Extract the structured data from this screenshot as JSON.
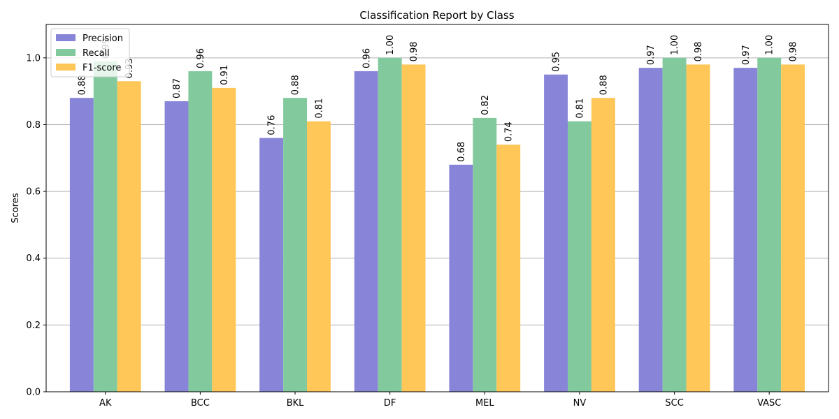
{
  "chart_data": {
    "type": "bar",
    "title": "Classification Report by Class",
    "xlabel": "",
    "ylabel": "Scores",
    "ylim": [
      0,
      1.1
    ],
    "yticks": [
      0.0,
      0.2,
      0.4,
      0.6,
      0.8,
      1.0
    ],
    "ytick_labels": [
      "0.0",
      "0.2",
      "0.4",
      "0.6",
      "0.8",
      "1.0"
    ],
    "grid": "y",
    "legend_position": "top-left",
    "categories": [
      "AK",
      "BCC",
      "BKL",
      "DF",
      "MEL",
      "NV",
      "SCC",
      "VASC"
    ],
    "series": [
      {
        "name": "Precision",
        "color": "#8884d8",
        "values": [
          0.88,
          0.87,
          0.76,
          0.96,
          0.68,
          0.95,
          0.97,
          0.97
        ],
        "labels": [
          "0.88",
          "0.87",
          "0.76",
          "0.96",
          "0.68",
          "0.95",
          "0.97",
          "0.97"
        ]
      },
      {
        "name": "Recall",
        "color": "#82ca9d",
        "values": [
          0.99,
          0.96,
          0.88,
          1.0,
          0.82,
          0.81,
          1.0,
          1.0
        ],
        "labels": [
          "0.99",
          "0.96",
          "0.88",
          "1.00",
          "0.82",
          "0.81",
          "1.00",
          "1.00"
        ]
      },
      {
        "name": "F1-score",
        "color": "#ffc658",
        "values": [
          0.93,
          0.91,
          0.81,
          0.98,
          0.74,
          0.88,
          0.98,
          0.98
        ],
        "labels": [
          "0.93",
          "0.91",
          "0.81",
          "0.98",
          "0.74",
          "0.88",
          "0.98",
          "0.98"
        ]
      }
    ]
  }
}
